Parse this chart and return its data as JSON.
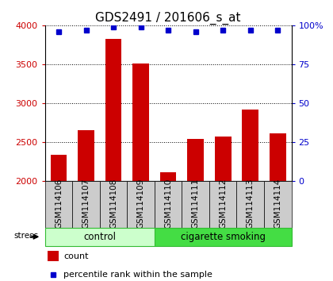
{
  "title": "GDS2491 / 201606_s_at",
  "samples": [
    "GSM114106",
    "GSM114107",
    "GSM114108",
    "GSM114109",
    "GSM114110",
    "GSM114111",
    "GSM114112",
    "GSM114113",
    "GSM114114"
  ],
  "counts": [
    2340,
    2650,
    3830,
    3510,
    2115,
    2540,
    2570,
    2920,
    2610
  ],
  "percentile_ranks": [
    96,
    97,
    99,
    99,
    97,
    96,
    97,
    97,
    97
  ],
  "groups": [
    {
      "label": "control",
      "start": 0,
      "end": 4,
      "color": "#ccffcc",
      "border_color": "#33bb33"
    },
    {
      "label": "cigarette smoking",
      "start": 4,
      "end": 9,
      "color": "#44dd44",
      "border_color": "#33bb33"
    }
  ],
  "group_label": "stress",
  "ylim": [
    2000,
    4000
  ],
  "yticks": [
    2000,
    2500,
    3000,
    3500,
    4000
  ],
  "ylim_right": [
    0,
    100
  ],
  "yticks_right": [
    0,
    25,
    50,
    75,
    100
  ],
  "ytick_labels_right": [
    "0",
    "25",
    "50",
    "75",
    "100%"
  ],
  "bar_color": "#cc0000",
  "dot_color": "#0000cc",
  "bar_bottom": 2000,
  "tick_label_fontsize": 7.5,
  "title_fontsize": 11,
  "grid_color": "#000000",
  "sample_box_color": "#cccccc",
  "bar_width": 0.6
}
